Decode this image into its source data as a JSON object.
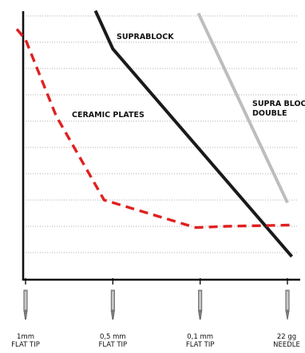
{
  "chart_data": {
    "type": "line",
    "title": "",
    "xlabel": "",
    "ylabel": "",
    "categories": [
      "1mm FLAT TIP",
      "0,5 mm FLAT TIP",
      "0,1 mm FLAT TIP",
      "22 gg NEEDLE"
    ],
    "tick_labels": [
      {
        "line1": "1mm",
        "line2": "FLAT TIP"
      },
      {
        "line1": "0,5 mm",
        "line2": "FLAT TIP"
      },
      {
        "line1": "0,1 mm",
        "line2": "FLAT TIP"
      },
      {
        "line1": "22 gg",
        "line2": "NEEDLE"
      }
    ],
    "x_range": [
      0,
      3.05
    ],
    "y_range": [
      0,
      10
    ],
    "grid": "horizontal-dotted",
    "y_gridlines": [
      1,
      2,
      3,
      4,
      5,
      6,
      7,
      8,
      9,
      10
    ],
    "series": [
      {
        "name": "SUPRABLOCK",
        "style": "solid",
        "color": "#1a1a1a",
        "points": [
          [
            0.8,
            10.2
          ],
          [
            1.0,
            8.75
          ],
          [
            3.05,
            0.85
          ]
        ]
      },
      {
        "name": "SUPRA BLOCK DOUBLE",
        "label_lines": [
          "SUPRA BLOCK",
          "DOUBLE"
        ],
        "style": "solid",
        "color": "#bdbdbd",
        "points": [
          [
            1.98,
            10.1
          ],
          [
            3.0,
            2.9
          ]
        ]
      },
      {
        "name": "CERAMIC PLATES",
        "style": "dashed",
        "color": "#e02020",
        "points": [
          [
            -0.1,
            9.5
          ],
          [
            0.0,
            9.1
          ],
          [
            0.35,
            6.2
          ],
          [
            0.9,
            3.0
          ],
          [
            1.0,
            2.9
          ],
          [
            1.95,
            1.95
          ],
          [
            2.3,
            2.0
          ],
          [
            3.05,
            2.05
          ]
        ]
      }
    ]
  }
}
